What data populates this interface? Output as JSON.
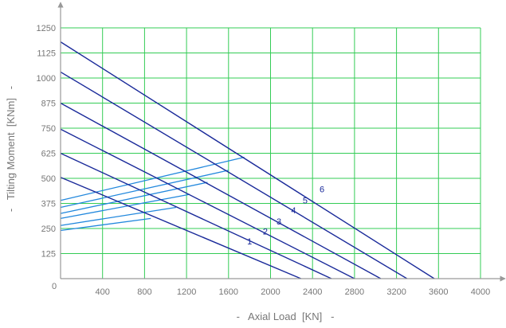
{
  "chart_data": {
    "type": "line",
    "title": "",
    "xlabel": "-   Axial Load  [KN]   -",
    "ylabel": "-   Tilting Moment  [KNm]   -",
    "xlim": [
      0,
      4000
    ],
    "ylim": [
      0,
      1250
    ],
    "x_ticks": [
      "400",
      "800",
      "1200",
      "1600",
      "2000",
      "2400",
      "2800",
      "3200",
      "3600",
      "4000"
    ],
    "y_ticks": [
      "0",
      "125",
      "250",
      "375",
      "500",
      "625",
      "750",
      "875",
      "1000",
      "1125",
      "1250"
    ],
    "x_tick_values": [
      400,
      800,
      1200,
      1600,
      2000,
      2400,
      2800,
      3200,
      3600,
      4000
    ],
    "y_tick_values": [
      0,
      125,
      250,
      375,
      500,
      625,
      750,
      875,
      1000,
      1125,
      1250
    ],
    "origin_label": "0",
    "grid": true,
    "colors": {
      "grid": "#33cc55",
      "axis": "#999999",
      "load_curves": "#1a2a9a",
      "bolt_curves": "#2288dd"
    },
    "series": [
      {
        "name": "1",
        "points": [
          [
            0,
            505
          ],
          [
            2290,
            0
          ]
        ],
        "label_at": [
          1800,
          170
        ]
      },
      {
        "name": "2",
        "points": [
          [
            0,
            625
          ],
          [
            2580,
            0
          ]
        ],
        "label_at": [
          1950,
          220
        ]
      },
      {
        "name": "3",
        "points": [
          [
            0,
            745
          ],
          [
            2800,
            0
          ]
        ],
        "label_at": [
          2080,
          270
        ]
      },
      {
        "name": "4",
        "points": [
          [
            0,
            875
          ],
          [
            3050,
            0
          ]
        ],
        "label_at": [
          2220,
          325
        ]
      },
      {
        "name": "5",
        "points": [
          [
            0,
            1030
          ],
          [
            3300,
            0
          ]
        ],
        "label_at": [
          2330,
          375
        ]
      },
      {
        "name": "6",
        "points": [
          [
            0,
            1180
          ],
          [
            3560,
            0
          ]
        ],
        "label_at": [
          2490,
          430
        ]
      }
    ],
    "bolt_series": [
      {
        "points": [
          [
            0,
            240
          ],
          [
            860,
            300
          ]
        ]
      },
      {
        "points": [
          [
            0,
            265
          ],
          [
            1100,
            355
          ]
        ]
      },
      {
        "points": [
          [
            0,
            300
          ],
          [
            1230,
            420
          ]
        ]
      },
      {
        "points": [
          [
            0,
            325
          ],
          [
            1400,
            480
          ]
        ]
      },
      {
        "points": [
          [
            0,
            355
          ],
          [
            1600,
            540
          ]
        ]
      },
      {
        "points": [
          [
            0,
            390
          ],
          [
            1750,
            605
          ]
        ]
      }
    ]
  }
}
